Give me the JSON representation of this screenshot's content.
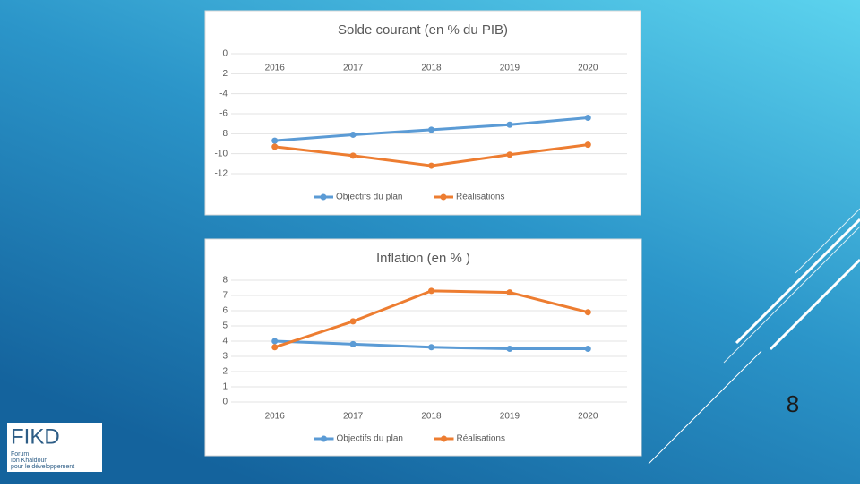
{
  "slide": {
    "number": "8"
  },
  "logo": {
    "mark": "FIKD",
    "lines": [
      "Forum",
      "Ibn Khaldoun",
      "pour le développement"
    ]
  },
  "chart_data": [
    {
      "type": "line",
      "title": "Solde courant (en % du PIB)",
      "categories": [
        "2016",
        "2017",
        "2018",
        "2019",
        "2020"
      ],
      "series": [
        {
          "name": "Objectifs du plan",
          "color": "#5b9bd5",
          "values": [
            -8.7,
            -8.1,
            -7.6,
            -7.1,
            -6.4
          ]
        },
        {
          "name": "Réalisations",
          "color": "#ed7d31",
          "values": [
            -9.3,
            -10.2,
            -11.2,
            -10.1,
            -9.1
          ]
        }
      ],
      "ylim": [
        -12,
        0
      ],
      "yticks": [
        0,
        {
          "value": -2,
          "label": "2"
        },
        -4,
        -6,
        {
          "value": -8,
          "label": "8"
        },
        -10,
        -12
      ],
      "grid": true,
      "legend": "bottom"
    },
    {
      "type": "line",
      "title": "Inflation (en % )",
      "categories": [
        "2016",
        "2017",
        "2018",
        "2019",
        "2020"
      ],
      "series": [
        {
          "name": "Objectifs du plan",
          "color": "#5b9bd5",
          "values": [
            4.0,
            3.8,
            3.6,
            3.5,
            3.5
          ]
        },
        {
          "name": "Réalisations",
          "color": "#ed7d31",
          "values": [
            3.6,
            5.3,
            7.3,
            7.2,
            5.9
          ]
        }
      ],
      "ylim": [
        0,
        8
      ],
      "yticks": [
        0,
        1,
        2,
        3,
        4,
        5,
        6,
        7,
        8
      ],
      "grid": true,
      "legend": "bottom"
    }
  ]
}
